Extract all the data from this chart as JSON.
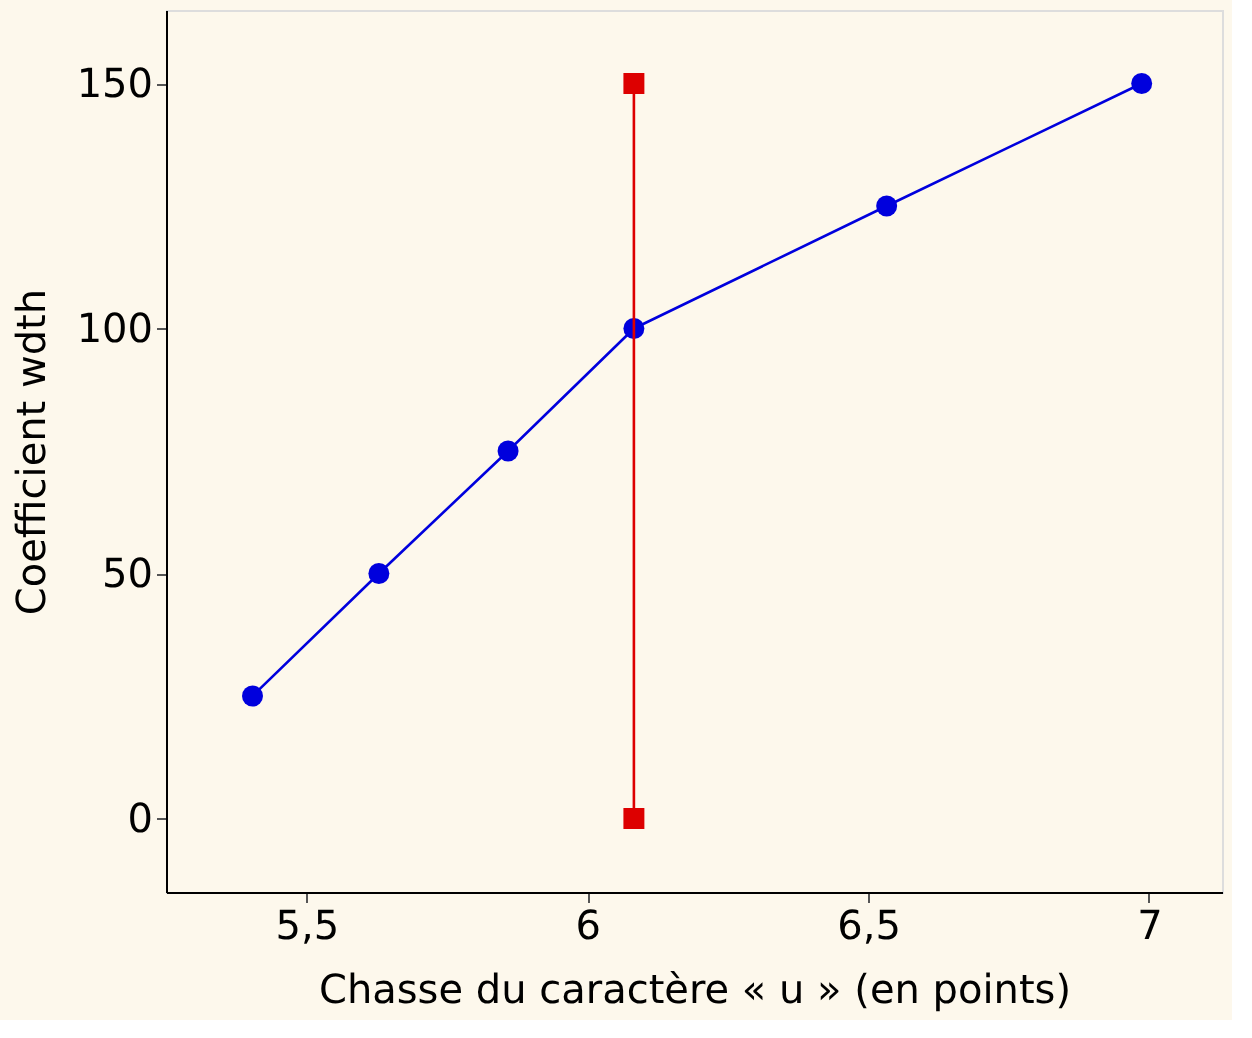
{
  "chart_data": {
    "type": "line",
    "xlabel": "Chasse du caractère « u » (en points)",
    "ylabel": "Coefficient wdth",
    "xlim": [
      5.25,
      7.13
    ],
    "xticks": [
      {
        "value": 5.5,
        "label": "5,5"
      },
      6,
      {
        "value": 6.5,
        "label": "6,5"
      },
      7
    ],
    "ylim": [
      -15,
      165
    ],
    "yticks": [
      0,
      50,
      100,
      150
    ],
    "grid": false,
    "series": [
      {
        "color": "#0000dd",
        "marker": "circle",
        "x": [
          5.404,
          5.629,
          5.859,
          6.083,
          6.533,
          6.987
        ],
        "values": [
          25,
          50,
          75,
          100,
          125,
          150
        ]
      },
      {
        "color": "#dd0000",
        "marker": "square",
        "x": [
          6.083,
          6.083
        ],
        "values": [
          0,
          150
        ]
      }
    ]
  }
}
